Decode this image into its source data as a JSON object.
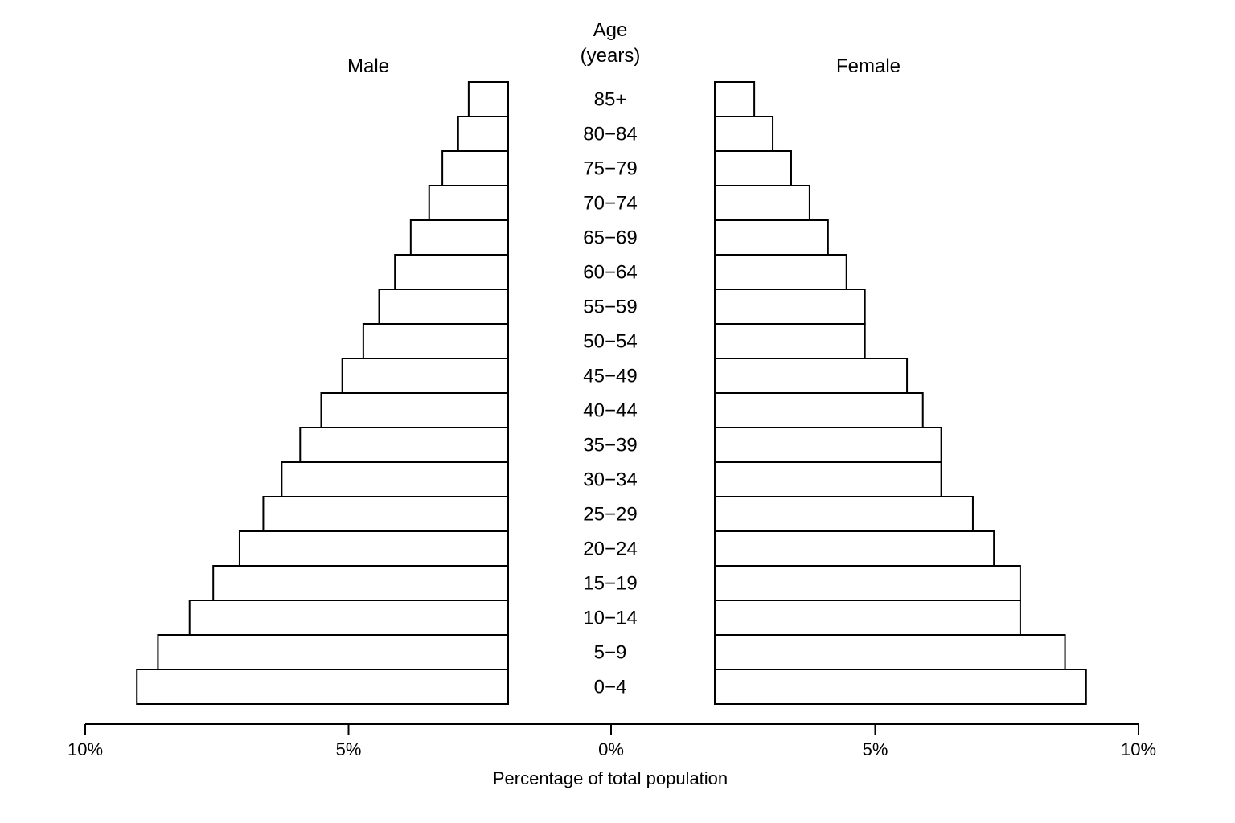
{
  "chart_data": {
    "type": "bar",
    "orientation": "horizontal",
    "layout": "population-pyramid",
    "center_title_line1": "Age",
    "center_title_line2": "(years)",
    "xlabel": "Percentage of total population",
    "x_ticks": [
      "10%",
      "5%",
      "0%",
      "5%",
      "10%"
    ],
    "xlim": [
      0,
      10
    ],
    "grid": false,
    "categories": [
      "85+",
      "80−84",
      "75−79",
      "70−74",
      "65−69",
      "60−64",
      "55−59",
      "50−54",
      "45−49",
      "40−44",
      "35−39",
      "30−34",
      "25−29",
      "20−24",
      "15−19",
      "10−14",
      "5−9",
      "0−4"
    ],
    "series": [
      {
        "name": "Male",
        "values": [
          0.75,
          0.95,
          1.25,
          1.5,
          1.85,
          2.15,
          2.45,
          2.75,
          3.15,
          3.55,
          3.95,
          4.3,
          4.65,
          5.1,
          5.6,
          6.05,
          6.65,
          7.05
        ]
      },
      {
        "name": "Female",
        "values": [
          0.75,
          1.1,
          1.45,
          1.8,
          2.15,
          2.5,
          2.85,
          2.85,
          3.65,
          3.95,
          4.3,
          4.3,
          4.9,
          5.3,
          5.8,
          5.8,
          6.65,
          7.05
        ]
      }
    ]
  }
}
